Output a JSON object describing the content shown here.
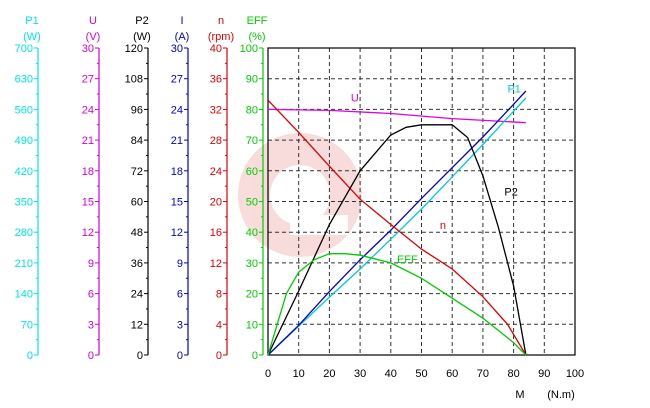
{
  "chart_data": {
    "type": "line",
    "x_axis": {
      "label": "M",
      "unit": "(N.m)",
      "range": [
        0,
        100
      ],
      "ticks": [
        "0",
        "10",
        "20",
        "30",
        "40",
        "50",
        "60",
        "70",
        "80",
        "90",
        "100"
      ]
    },
    "y_axes": [
      {
        "key": "P1",
        "name": "P1",
        "unit": "(W)",
        "color": "#00e5e5",
        "range": [
          0,
          700
        ],
        "ticks": [
          "0",
          "70",
          "140",
          "210",
          "280",
          "350",
          "420",
          "490",
          "560",
          "630",
          "700"
        ]
      },
      {
        "key": "U",
        "name": "U",
        "unit": "(V)",
        "color": "#d400d4",
        "range": [
          0,
          30
        ],
        "ticks": [
          "0",
          "3",
          "6",
          "9",
          "12",
          "15",
          "18",
          "21",
          "24",
          "27",
          "30"
        ]
      },
      {
        "key": "P2",
        "name": "P2",
        "unit": "(W)",
        "color": "#000000",
        "range": [
          0,
          120
        ],
        "ticks": [
          "0",
          "12",
          "24",
          "36",
          "48",
          "60",
          "72",
          "84",
          "96",
          "108",
          "120"
        ]
      },
      {
        "key": "I",
        "name": "I",
        "unit": "(A)",
        "color": "#0000cc",
        "range": [
          0,
          30
        ],
        "ticks": [
          "0",
          "3",
          "6",
          "9",
          "12",
          "15",
          "18",
          "21",
          "24",
          "27",
          "30"
        ]
      },
      {
        "key": "n",
        "name": "n",
        "unit": "(rpm)",
        "color": "#e00000",
        "range": [
          0,
          40
        ],
        "ticks": [
          "0",
          "4",
          "8",
          "12",
          "16",
          "20",
          "24",
          "28",
          "32",
          "36",
          "40"
        ]
      },
      {
        "key": "EFF",
        "name": "EFF",
        "unit": "(%)",
        "color": "#00cc00",
        "range": [
          0,
          100
        ],
        "ticks": [
          "0",
          "10",
          "20",
          "30",
          "40",
          "50",
          "60",
          "70",
          "80",
          "90",
          "100"
        ]
      }
    ],
    "grid": true,
    "series": [
      {
        "name": "U",
        "axis": "U",
        "color": "#e000e0",
        "x": [
          0,
          20,
          40,
          60,
          84
        ],
        "y": [
          24,
          23.9,
          23.6,
          23.1,
          22.7
        ]
      },
      {
        "name": "P1",
        "axis": "P1",
        "color": "#00cccc",
        "x": [
          0,
          10,
          20,
          30,
          40,
          50,
          60,
          70,
          80,
          84
        ],
        "y": [
          0,
          66,
          132,
          196,
          264,
          333,
          406,
          480,
          556,
          586
        ]
      },
      {
        "name": "I",
        "axis": "I",
        "color": "#0000cc",
        "x": [
          0,
          10,
          20,
          30,
          40,
          50,
          60,
          70,
          80,
          84
        ],
        "y": [
          0,
          2.9,
          6.2,
          9.3,
          12.2,
          15.3,
          18.3,
          21.3,
          24.5,
          25.8
        ]
      },
      {
        "name": "n",
        "axis": "n",
        "color": "#e00000",
        "x": [
          0,
          10,
          20,
          30,
          40,
          50,
          60,
          70,
          78,
          84
        ],
        "y": [
          33.2,
          29,
          24.6,
          20.3,
          17,
          13.8,
          11.2,
          7.6,
          4,
          0
        ]
      },
      {
        "name": "P2",
        "axis": "P2",
        "color": "#000000",
        "x": [
          0,
          10,
          20,
          30,
          40,
          45,
          50,
          55,
          60,
          65,
          70,
          75,
          80,
          84
        ],
        "y": [
          0,
          25,
          51,
          72,
          86,
          89,
          90,
          90,
          90,
          85,
          70,
          50,
          27,
          0
        ]
      },
      {
        "name": "EFF",
        "axis": "EFF",
        "color": "#00cc00",
        "x": [
          0,
          3,
          6,
          10,
          15,
          20,
          25,
          30,
          40,
          50,
          60,
          70,
          75,
          80,
          84
        ],
        "y": [
          0,
          10,
          20,
          27,
          31,
          33,
          33,
          32.5,
          30,
          25,
          18.5,
          12,
          8,
          4,
          0
        ]
      }
    ],
    "annotations": [
      {
        "text": "U",
        "color": "#e000e0",
        "x": 27,
        "axis": "EFF",
        "y": 82.5
      },
      {
        "text": "P2",
        "color": "#000000",
        "x": 77,
        "axis": "EFF",
        "y": 52
      },
      {
        "text": "n",
        "color": "#e00000",
        "x": 56,
        "axis": "EFF",
        "y": 41
      },
      {
        "text": "EFF",
        "color": "#00cc00",
        "x": 42,
        "axis": "EFF",
        "y": 30
      },
      {
        "text": "P1",
        "color": "#00cccc",
        "x": 78,
        "axis": "EFF",
        "y": 85.5
      }
    ]
  }
}
